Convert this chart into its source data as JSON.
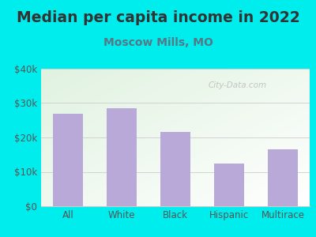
{
  "title": "Median per capita income in 2022",
  "subtitle": "Moscow Mills, MO",
  "categories": [
    "All",
    "White",
    "Black",
    "Hispanic",
    "Multirace"
  ],
  "values": [
    27000,
    28500,
    21500,
    12500,
    16500
  ],
  "bar_color": "#b8a9d9",
  "background_outer": "#00eded",
  "title_color": "#333333",
  "subtitle_color": "#557788",
  "tick_label_color": "#555555",
  "grid_color": "#cccccc",
  "ylim": [
    0,
    40000
  ],
  "yticks": [
    0,
    10000,
    20000,
    30000,
    40000
  ],
  "ytick_labels": [
    "$0",
    "$10k",
    "$20k",
    "$30k",
    "$40k"
  ],
  "watermark": "City-Data.com",
  "title_fontsize": 13.5,
  "subtitle_fontsize": 10,
  "tick_fontsize": 8.5
}
